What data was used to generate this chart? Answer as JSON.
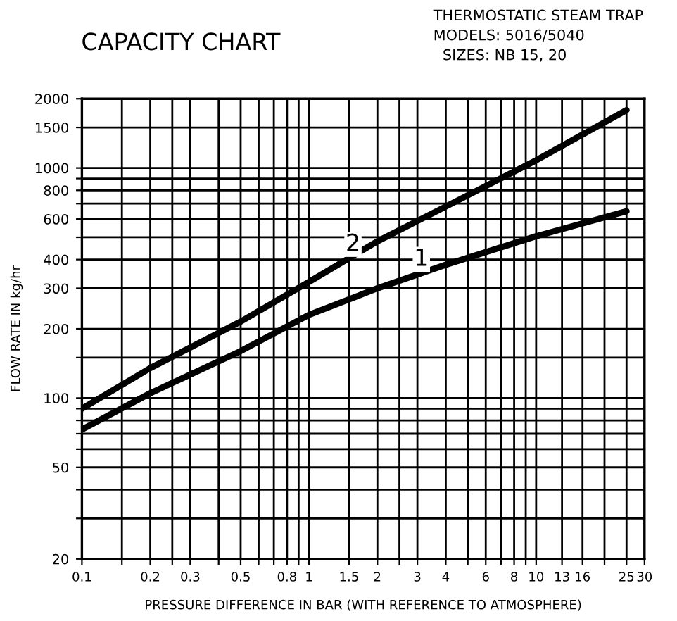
{
  "chart_data": {
    "type": "line",
    "title": "CAPACITY CHART",
    "subtitle": "THERMOSTATIC STEAM TRAP\nMODELS: 5016/5040\n  SIZES: NB 15, 20",
    "xlabel": "PRESSURE DIFFERENCE IN BAR (WITH REFERENCE TO ATMOSPHERE)",
    "ylabel": "FLOW RATE IN kg/hr",
    "log": "xy",
    "grid": true,
    "line_style": "solid",
    "marker": "none",
    "x": [
      0.1,
      0.2,
      0.5,
      1,
      2,
      4,
      10,
      25
    ],
    "series": [
      {
        "name": "1",
        "color": "#000000",
        "values": [
          73,
          105,
          160,
          230,
          300,
          380,
          505,
          649
        ]
      },
      {
        "name": "2",
        "color": "#000000",
        "values": [
          90,
          135,
          215,
          320,
          480,
          680,
          1080,
          1786
        ]
      }
    ],
    "xlim": [
      0.1,
      30
    ],
    "ylim": [
      20,
      2000
    ],
    "xticks": [
      0.1,
      {
        "value": 0.15,
        "label": null
      },
      0.2,
      {
        "value": 0.25,
        "label": null
      },
      0.3,
      {
        "value": 0.4,
        "label": null
      },
      0.5,
      {
        "value": 0.6,
        "label": null
      },
      {
        "value": 0.7,
        "label": null
      },
      0.8,
      {
        "value": 0.9,
        "label": null
      },
      1,
      1.5,
      2,
      {
        "value": 2.5,
        "label": null
      },
      3,
      4,
      {
        "value": 5,
        "label": null
      },
      6,
      {
        "value": 7,
        "label": null
      },
      8,
      {
        "value": 9,
        "label": null
      },
      10,
      13,
      16,
      {
        "value": 20,
        "label": null
      },
      25,
      30
    ],
    "yticks": [
      20,
      {
        "value": 30,
        "label": null
      },
      {
        "value": 40,
        "label": null
      },
      50,
      {
        "value": 60,
        "label": null
      },
      {
        "value": 70,
        "label": null
      },
      {
        "value": 80,
        "label": null
      },
      {
        "value": 90,
        "label": null
      },
      100,
      {
        "value": 150,
        "label": null
      },
      200,
      300,
      400,
      {
        "value": 500,
        "label": null
      },
      600,
      {
        "value": 700,
        "label": null
      },
      800,
      {
        "value": 900,
        "label": null
      },
      1000,
      1500,
      2000
    ]
  }
}
